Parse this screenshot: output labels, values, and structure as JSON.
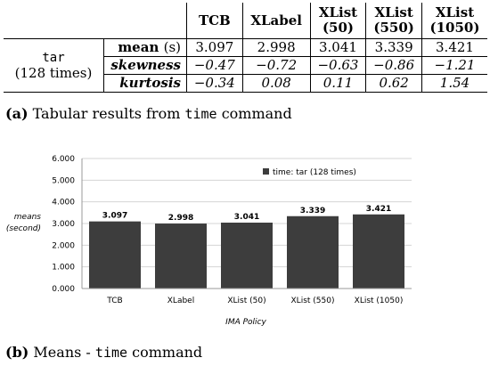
{
  "table": {
    "columns": [
      "TCB",
      "XLabel",
      "XList (50)",
      "XList (550)",
      "XList (1050)"
    ],
    "column_lines": [
      [
        "TCB"
      ],
      [
        "XLabel"
      ],
      [
        "XList",
        "(50)"
      ],
      [
        "XList",
        "(550)"
      ],
      [
        "XList",
        "(1050)"
      ]
    ],
    "row_label_mono": "tar",
    "row_label_text": "(128 times)",
    "rows": [
      {
        "name": "mean",
        "unit": "(s)",
        "italic": false,
        "values": [
          "3.097",
          "2.998",
          "3.041",
          "3.339",
          "3.421"
        ]
      },
      {
        "name": "skewness",
        "unit": "",
        "italic": true,
        "values": [
          "−0.47",
          "−0.72",
          "−0.63",
          "−0.86",
          "−1.21"
        ]
      },
      {
        "name": "kurtosis",
        "unit": "",
        "italic": true,
        "values": [
          "−0.34",
          "0.08",
          "0.11",
          "0.62",
          "1.54"
        ]
      }
    ]
  },
  "caption_a": {
    "label": "(a)",
    "text": "Tabular results from",
    "command": "time",
    "suffix": "command"
  },
  "caption_b": {
    "label": "(b)",
    "text": "Means -",
    "command": "time",
    "suffix": "command"
  },
  "chart_data": {
    "type": "bar",
    "categories": [
      "TCB",
      "XLabel",
      "XList (50)",
      "XList (550)",
      "XList (1050)"
    ],
    "series": [
      {
        "name": "time: tar (128 times)",
        "values": [
          3.097,
          2.998,
          3.041,
          3.339,
          3.421
        ]
      }
    ],
    "data_labels": [
      "3.097",
      "2.998",
      "3.041",
      "3.339",
      "3.421"
    ],
    "ylabel_lines": [
      "means",
      "(second)"
    ],
    "xlabel": "IMA Policy",
    "ylim": [
      0,
      6
    ],
    "yticks": [
      "0.000",
      "1.000",
      "2.000",
      "3.000",
      "4.000",
      "5.000",
      "6.000"
    ],
    "grid": "horizontal",
    "legend_position": "top-right",
    "bar_color": "#3d3d3d",
    "grid_color": "#d4d4d4",
    "axis_color": "#999999"
  }
}
